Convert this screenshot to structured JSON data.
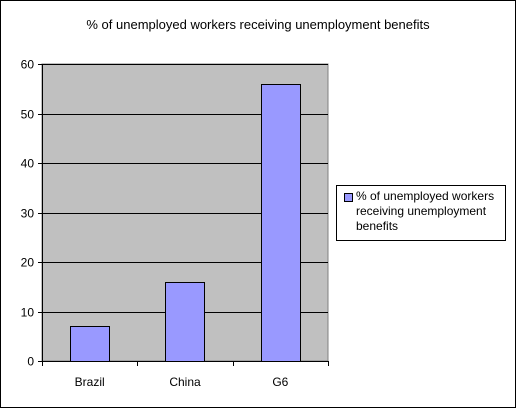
{
  "chart_data": {
    "type": "bar",
    "title": "% of unemployed workers receiving unemployment benefits",
    "categories": [
      "Brazil",
      "China",
      "G6"
    ],
    "series": [
      {
        "name": "% of unemployed workers receiving unemployment benefits",
        "values": [
          7,
          16,
          56
        ]
      }
    ],
    "ylim": [
      0,
      60
    ],
    "yticks": [
      0,
      10,
      20,
      30,
      40,
      50,
      60
    ],
    "xlabel": "",
    "ylabel": "",
    "grid": true,
    "legend": "right",
    "colors": {
      "plot_background": "#c0c0c0",
      "bar_fill": "#9999ff",
      "outline": "#000000"
    }
  }
}
